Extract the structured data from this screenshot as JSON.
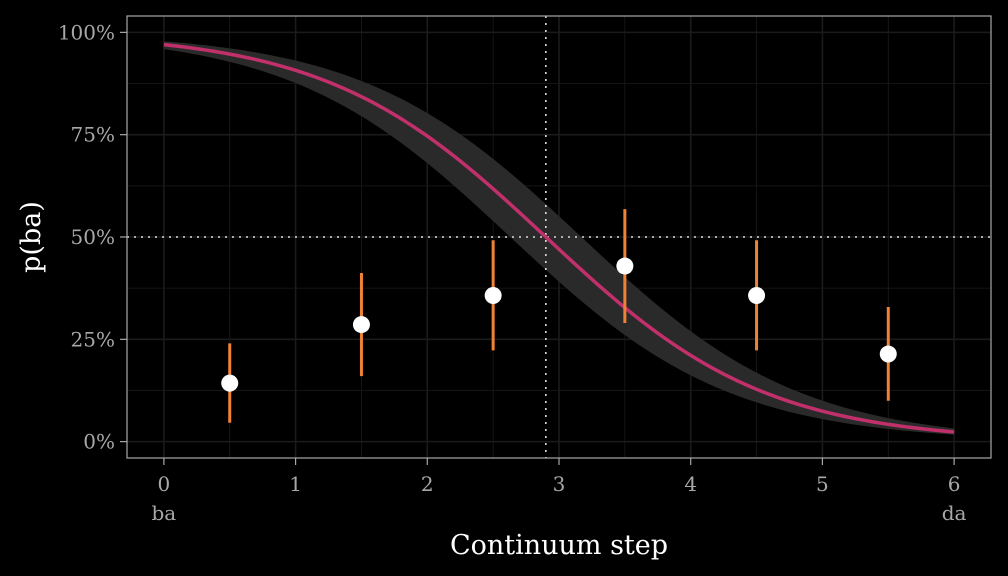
{
  "chart_data": {
    "type": "scatter",
    "xlabel": "Continuum step",
    "ylabel": "p(ba)",
    "xlim": [
      -0.28,
      6.28
    ],
    "ylim": [
      -4,
      104
    ],
    "x_ticks": [
      0,
      1,
      2,
      3,
      4,
      5,
      6
    ],
    "x_tick_labels": [
      "0",
      "1",
      "2",
      "3",
      "4",
      "5",
      "6"
    ],
    "x_endpoint_labels": [
      {
        "x": 0,
        "label": "ba"
      },
      {
        "x": 6,
        "label": "da"
      }
    ],
    "y_ticks": [
      0,
      25,
      50,
      75,
      100
    ],
    "y_tick_labels": [
      "0%",
      "25%",
      "50%",
      "75%",
      "100%"
    ],
    "grid": true,
    "reference_lines": {
      "vertical_x": 2.9,
      "horizontal_y": 50
    },
    "points": {
      "x": [
        0.5,
        1.5,
        2.5,
        3.5,
        4.5,
        5.5
      ],
      "y": [
        14.3,
        28.6,
        35.7,
        42.9,
        35.7,
        21.4
      ],
      "lower": [
        4.6,
        16.0,
        22.3,
        29.0,
        22.3,
        10.0
      ],
      "upper": [
        24.0,
        41.2,
        49.2,
        56.8,
        49.2,
        32.9
      ]
    },
    "fit_curve": {
      "midpoint": 2.9,
      "slope": 1.2,
      "lower_asymptote": 0,
      "upper_asymptote": 100,
      "band_midpoints": [
        2.63,
        3.17
      ]
    },
    "colors": {
      "background": "#000000",
      "grid": "#1b1b1b",
      "axis_frame": "#a8a8a8",
      "tick_label": "#a8a8a8",
      "title": "#ffffff",
      "curve": "#c2306b",
      "band": "#2a2a2a",
      "error_bar": "#f08235",
      "point": "#ffffff",
      "reference_line": "#dddddd"
    }
  }
}
